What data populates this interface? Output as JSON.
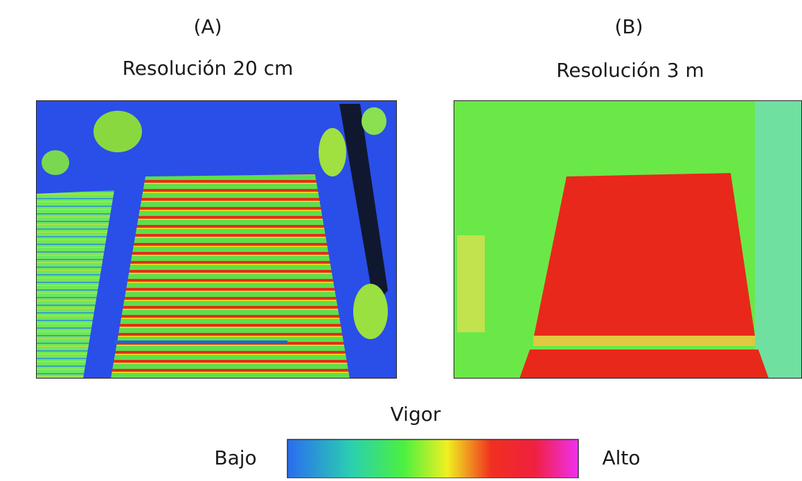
{
  "panels": [
    {
      "label": "(A)",
      "title": "Resolución 20 cm"
    },
    {
      "label": "(B)",
      "title": "Resolución 3 m"
    }
  ],
  "legend": {
    "title": "Vigor",
    "low": "Bajo",
    "high": "Alto"
  }
}
